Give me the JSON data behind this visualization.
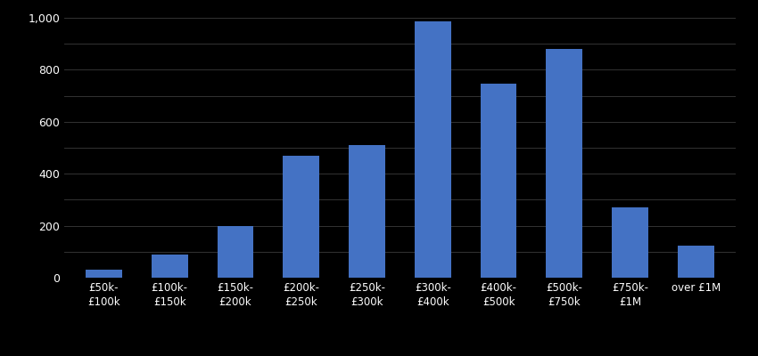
{
  "categories": [
    "£50k-\n£100k",
    "£100k-\n£150k",
    "£150k-\n£200k",
    "£200k-\n£250k",
    "£250k-\n£300k",
    "£300k-\n£400k",
    "£400k-\n£500k",
    "£500k-\n£750k",
    "£750k-\n£1M",
    "over £1M"
  ],
  "values": [
    30,
    90,
    200,
    470,
    510,
    985,
    745,
    880,
    270,
    125
  ],
  "bar_color": "#4472C4",
  "background_color": "#000000",
  "text_color": "#ffffff",
  "grid_color": "#333333",
  "ylim": [
    0,
    1000
  ],
  "yticks": [
    0,
    200,
    400,
    600,
    800,
    1000
  ],
  "minor_yticks": [
    100,
    300,
    500,
    700,
    900
  ]
}
